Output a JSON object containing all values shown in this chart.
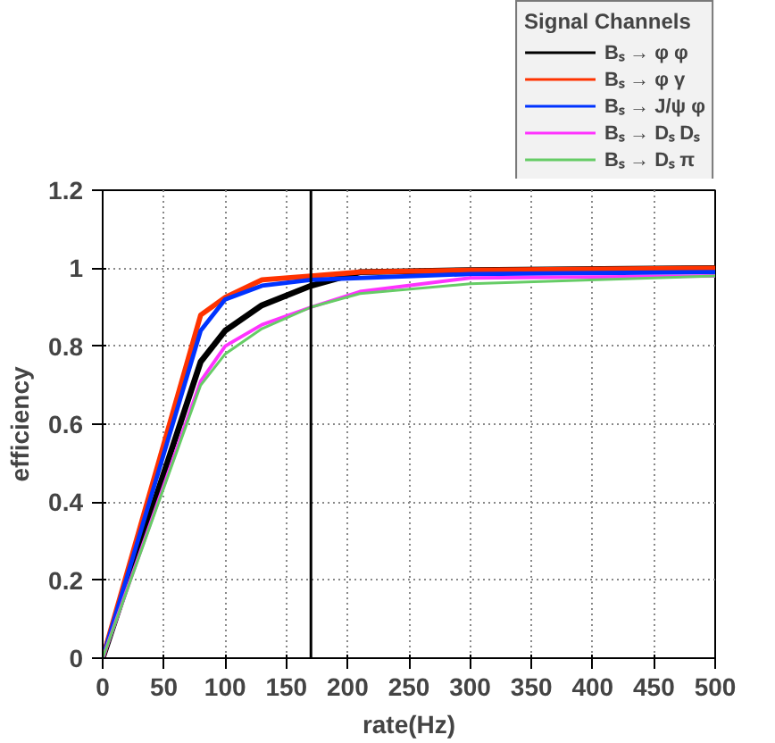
{
  "chart_data": {
    "type": "line",
    "xlabel": "rate(Hz)",
    "ylabel": "efficiency",
    "legend_title": "Signal Channels",
    "legend": "top right",
    "grid": true,
    "marker": "none",
    "line_style": "solid",
    "x": [
      0,
      80,
      100,
      130,
      170,
      210,
      300,
      500
    ],
    "xlim": [
      0,
      500
    ],
    "ylim": [
      0,
      1.2
    ],
    "xticks": [
      0,
      50,
      100,
      150,
      200,
      250,
      300,
      350,
      400,
      450,
      500
    ],
    "yticks": [
      0,
      0.2,
      0.4,
      0.6,
      0.8,
      1,
      1.2
    ],
    "series": [
      {
        "name": "Bₛ → φ φ",
        "color": "#000000",
        "values": [
          0,
          0.76,
          0.84,
          0.905,
          0.955,
          0.99,
          0.995,
          1.0
        ]
      },
      {
        "name": "Bₛ → φ γ",
        "color": "#ff3300",
        "values": [
          0,
          0.88,
          0.925,
          0.97,
          0.98,
          0.99,
          0.995,
          1.0
        ]
      },
      {
        "name": "Bₛ → J/ψ φ",
        "color": "#0033ff",
        "values": [
          0,
          0.84,
          0.92,
          0.955,
          0.97,
          0.975,
          0.985,
          0.99
        ]
      },
      {
        "name": "Bₛ → Dₛ Dₛ",
        "color": "#ff33ff",
        "values": [
          0,
          0.71,
          0.8,
          0.855,
          0.9,
          0.94,
          0.975,
          0.98
        ]
      },
      {
        "name": "Bₛ → Dₛ π",
        "color": "#66cc66",
        "values": [
          0,
          0.7,
          0.78,
          0.845,
          0.9,
          0.935,
          0.96,
          0.98
        ]
      }
    ],
    "ref_lines": [
      {
        "axis": "x",
        "value": 170,
        "label": null,
        "color": "#000000"
      }
    ]
  }
}
